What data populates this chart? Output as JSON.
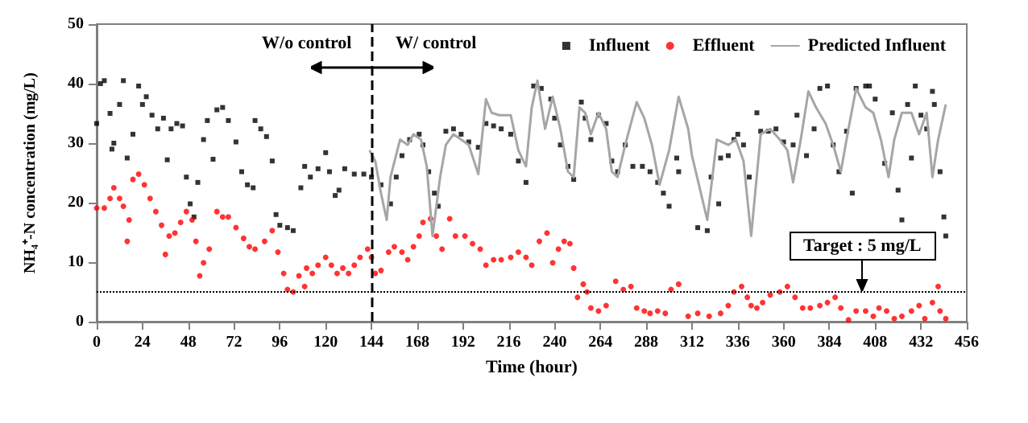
{
  "chart_data": {
    "type": "scatter",
    "xlabel": "Time (hour)",
    "ylabel": "NH₄⁺-N concentration (mg/L)",
    "xlim": [
      0,
      456
    ],
    "xticks": [
      0,
      24,
      48,
      72,
      96,
      120,
      144,
      168,
      192,
      216,
      240,
      264,
      288,
      312,
      336,
      360,
      384,
      408,
      432,
      456
    ],
    "ylim": [
      0,
      50
    ],
    "yticks": [
      0,
      10,
      20,
      30,
      40,
      50
    ],
    "grid": false,
    "legend": "top right",
    "annotations": [
      "W/o control",
      "W/ control"
    ],
    "ref_lines": [
      {
        "axis": "x",
        "value": 144,
        "label": null,
        "line_style": "dashed"
      },
      {
        "axis": "y",
        "value": 5,
        "label": "Target : 5 mg/L",
        "line_style": "dotted"
      }
    ],
    "series": [
      {
        "name": "Influent",
        "marker": "square",
        "color": "#000000",
        "x": [
          0,
          2,
          4,
          7,
          8,
          9,
          12,
          14,
          16,
          19,
          22,
          24,
          26,
          29,
          32,
          35,
          37,
          39,
          42,
          45,
          47,
          49,
          51,
          53,
          56,
          58,
          61,
          63,
          66,
          69,
          73,
          76,
          79,
          82,
          83,
          86,
          89,
          92,
          94,
          96,
          100,
          103,
          107,
          109,
          112,
          116,
          120,
          122,
          125,
          127,
          130,
          135,
          140,
          144,
          149,
          154,
          157,
          160,
          164,
          169,
          171,
          174,
          177,
          179,
          183,
          187,
          191,
          195,
          200,
          204,
          208,
          212,
          217,
          221,
          225,
          229,
          233,
          238,
          240,
          243,
          247,
          250,
          254,
          256,
          259,
          263,
          267,
          270,
          273,
          277,
          281,
          286,
          290,
          294,
          297,
          300,
          304,
          305,
          315,
          320,
          322,
          326,
          327,
          331,
          334,
          336,
          339,
          342,
          346,
          348,
          352,
          356,
          360,
          365,
          367,
          372,
          376,
          379,
          383,
          386,
          389,
          393,
          396,
          398,
          403,
          405,
          408,
          413,
          417,
          420,
          422,
          425,
          427,
          429,
          432,
          435,
          438,
          439,
          442,
          444,
          445
        ],
        "values": [
          33.3,
          40,
          40.5,
          35,
          29,
          30,
          36.5,
          40.5,
          27.5,
          31.5,
          39.6,
          36.5,
          37.8,
          34.7,
          32.4,
          34.2,
          27.2,
          32.4,
          33.3,
          32.9,
          24.3,
          19.8,
          17.6,
          23.4,
          30.6,
          33.8,
          27.3,
          35.6,
          36,
          33.8,
          30.2,
          25.2,
          23,
          22.5,
          33.8,
          32.4,
          31.1,
          27,
          18,
          16.2,
          15.8,
          15.3,
          22.5,
          26.1,
          24.3,
          25.7,
          28.4,
          25.2,
          21.2,
          22.1,
          25.7,
          24.8,
          24.8,
          24.3,
          23,
          19.8,
          24.3,
          27.9,
          30.6,
          31.5,
          29.7,
          25.2,
          21.6,
          19.4,
          32,
          32.4,
          31.5,
          30.2,
          29.3,
          33.3,
          32.9,
          32.4,
          31.5,
          27,
          23.4,
          39.6,
          39.2,
          37.4,
          34.2,
          29.7,
          26.1,
          23.9,
          36.9,
          34.2,
          30.6,
          34.7,
          33.3,
          27,
          25.2,
          29.7,
          26.1,
          26.1,
          25.2,
          23.4,
          21.6,
          19.4,
          27.5,
          25.2,
          15.8,
          15.3,
          24.3,
          19.8,
          27.5,
          27.9,
          30.6,
          31.5,
          29.7,
          24.3,
          35.1,
          32,
          32,
          32.4,
          30.2,
          29.7,
          34.7,
          27.9,
          32.4,
          39.2,
          39.6,
          29.7,
          25.2,
          32,
          21.6,
          39.2,
          39.6,
          39.6,
          37.4,
          26.6,
          35.1,
          22.1,
          17.1,
          36.5,
          27.5,
          39.6,
          34.7,
          32.4,
          38.7,
          36.5,
          25.2,
          17.6,
          14.4
        ]
      },
      {
        "name": "Effluent",
        "marker": "circle",
        "color": "#ff0000",
        "x": [
          0,
          4,
          7,
          9,
          12,
          14,
          16,
          17,
          19,
          22,
          25,
          28,
          31,
          34,
          36,
          38,
          41,
          44,
          47,
          50,
          52,
          54,
          56,
          59,
          63,
          66,
          69,
          73,
          77,
          80,
          83,
          88,
          92,
          95,
          98,
          100,
          103,
          106,
          109,
          110,
          113,
          116,
          120,
          123,
          126,
          129,
          132,
          135,
          138,
          142,
          144,
          146,
          149,
          153,
          156,
          160,
          163,
          166,
          169,
          171,
          175,
          178,
          181,
          185,
          188,
          193,
          197,
          201,
          204,
          208,
          212,
          217,
          221,
          225,
          228,
          232,
          236,
          239,
          242,
          245,
          248,
          250,
          252,
          255,
          257,
          259,
          263,
          267,
          272,
          276,
          280,
          283,
          287,
          290,
          294,
          298,
          301,
          305,
          310,
          315,
          321,
          327,
          331,
          334,
          338,
          341,
          343,
          346,
          349,
          353,
          358,
          362,
          366,
          370,
          374,
          379,
          383,
          387,
          390,
          394,
          398,
          403,
          407,
          410,
          414,
          418,
          422,
          427,
          431,
          434,
          438,
          441,
          442,
          445
        ],
        "values": [
          19.1,
          19.1,
          20.7,
          22.5,
          20.7,
          19.4,
          13.5,
          17.1,
          23.9,
          24.8,
          23,
          20.7,
          18.5,
          16.2,
          11.3,
          14.4,
          14.9,
          16.7,
          18.5,
          17.1,
          13.5,
          7.7,
          9.9,
          12.2,
          18.5,
          17.6,
          17.6,
          15.8,
          14,
          12.6,
          12.2,
          13.5,
          15.3,
          11.7,
          8.1,
          5.4,
          5,
          7.7,
          5.9,
          9,
          8.1,
          9.5,
          10.8,
          9.5,
          8.1,
          9,
          8.1,
          9.5,
          10.8,
          12.2,
          10.8,
          8.1,
          8.6,
          11.7,
          12.6,
          11.7,
          10.4,
          12.6,
          14.4,
          16.7,
          17.3,
          14.4,
          12.2,
          17.3,
          14.4,
          14.4,
          13.1,
          12.2,
          9.5,
          10.4,
          10.4,
          10.8,
          11.7,
          10.8,
          9.5,
          13.5,
          14.9,
          9.9,
          12.2,
          13.5,
          13.1,
          9,
          4.1,
          6.3,
          5,
          2.3,
          1.8,
          2.7,
          6.8,
          5.4,
          5.9,
          2.3,
          1.8,
          1.4,
          1.8,
          1.4,
          5.4,
          6.3,
          0.9,
          1.4,
          0.9,
          1.4,
          2.7,
          5,
          5.9,
          4.1,
          2.7,
          2.3,
          3.2,
          4.5,
          5,
          5.9,
          4.1,
          2.3,
          2.3,
          2.7,
          3.2,
          4.1,
          2.3,
          0.3,
          1.8,
          1.8,
          0.9,
          2.3,
          1.8,
          0.5,
          0.9,
          1.8,
          2.7,
          0.5,
          3.2,
          5.9,
          1.8,
          0.5
        ]
      },
      {
        "name": "Predicted Influent",
        "type": "line",
        "marker": "none",
        "line_style": "solid",
        "color": "#a6a6a6",
        "x": [
          143,
          146,
          149,
          152,
          154,
          159,
          163,
          166,
          170,
          173,
          176,
          180,
          183,
          187,
          191,
          195,
          200,
          204,
          207,
          211,
          217,
          221,
          225,
          228,
          231,
          235,
          239,
          243,
          247,
          250,
          253,
          256,
          259,
          263,
          267,
          270,
          273,
          277,
          283,
          287,
          291,
          295,
          300,
          305,
          310,
          312,
          320,
          325,
          331,
          335,
          339,
          343,
          348,
          353,
          358,
          362,
          365,
          369,
          373,
          377,
          382,
          386,
          390,
          394,
          398,
          403,
          407,
          411,
          415,
          418,
          422,
          427,
          431,
          435,
          438,
          441,
          445
        ],
        "values": [
          28.8,
          27,
          21.6,
          17.1,
          24.3,
          30.6,
          29.7,
          31.5,
          30.6,
          26.1,
          14.4,
          24.3,
          29.7,
          31.5,
          30.6,
          29.7,
          24.8,
          37.4,
          35.1,
          34.7,
          34.7,
          28.8,
          26.1,
          36,
          40.5,
          32.4,
          37.8,
          32.4,
          25.2,
          24.3,
          36,
          35.1,
          31.5,
          35.1,
          32.4,
          25.2,
          24.3,
          29.7,
          36.9,
          34.2,
          29.7,
          23,
          28.8,
          37.8,
          32.4,
          27.9,
          17.1,
          30.6,
          29.7,
          30.6,
          27,
          14.4,
          31.5,
          32.4,
          30.6,
          28.8,
          23.4,
          30.6,
          38.7,
          36,
          33.3,
          29.7,
          25.2,
          32.4,
          39.2,
          36,
          35.1,
          30.6,
          24.3,
          30.6,
          35.1,
          35.1,
          31.5,
          35.1,
          24.3,
          30.6,
          36.5
        ]
      }
    ]
  }
}
